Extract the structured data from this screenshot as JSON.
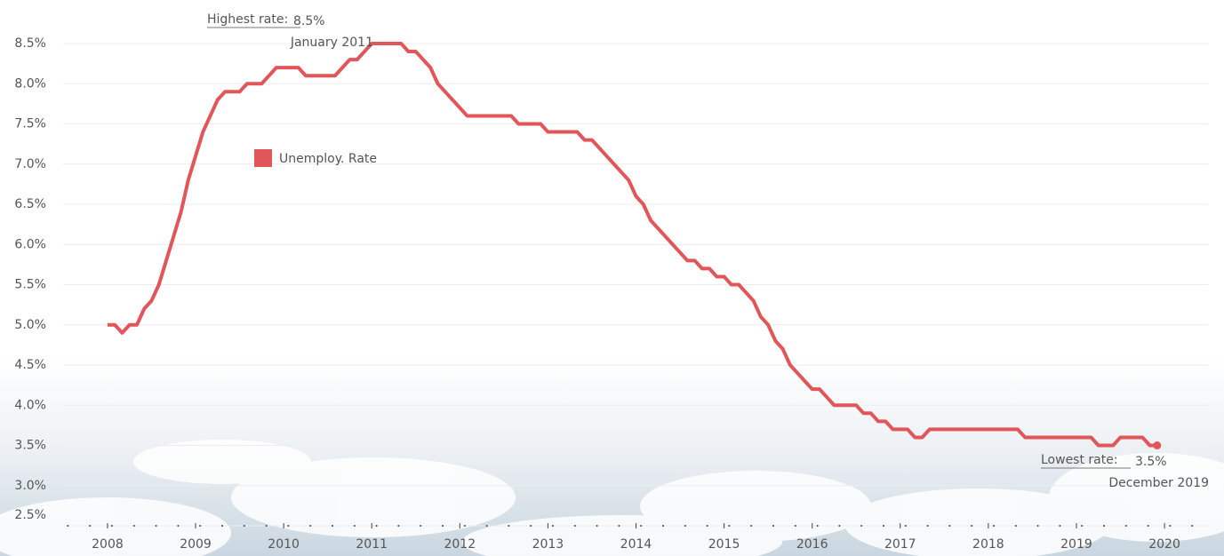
{
  "chart_data": {
    "type": "line",
    "x": [
      "2008-01",
      "2008-02",
      "2008-03",
      "2008-04",
      "2008-05",
      "2008-06",
      "2008-07",
      "2008-08",
      "2008-09",
      "2008-10",
      "2008-11",
      "2008-12",
      "2009-01",
      "2009-02",
      "2009-03",
      "2009-04",
      "2009-05",
      "2009-06",
      "2009-07",
      "2009-08",
      "2009-09",
      "2009-10",
      "2009-11",
      "2009-12",
      "2010-01",
      "2010-02",
      "2010-03",
      "2010-04",
      "2010-05",
      "2010-06",
      "2010-07",
      "2010-08",
      "2010-09",
      "2010-10",
      "2010-11",
      "2010-12",
      "2011-01",
      "2011-02",
      "2011-03",
      "2011-04",
      "2011-05",
      "2011-06",
      "2011-07",
      "2011-08",
      "2011-09",
      "2011-10",
      "2011-11",
      "2011-12",
      "2012-01",
      "2012-02",
      "2012-03",
      "2012-04",
      "2012-05",
      "2012-06",
      "2012-07",
      "2012-08",
      "2012-09",
      "2012-10",
      "2012-11",
      "2012-12",
      "2013-01",
      "2013-02",
      "2013-03",
      "2013-04",
      "2013-05",
      "2013-06",
      "2013-07",
      "2013-08",
      "2013-09",
      "2013-10",
      "2013-11",
      "2013-12",
      "2014-01",
      "2014-02",
      "2014-03",
      "2014-04",
      "2014-05",
      "2014-06",
      "2014-07",
      "2014-08",
      "2014-09",
      "2014-10",
      "2014-11",
      "2014-12",
      "2015-01",
      "2015-02",
      "2015-03",
      "2015-04",
      "2015-05",
      "2015-06",
      "2015-07",
      "2015-08",
      "2015-09",
      "2015-10",
      "2015-11",
      "2015-12",
      "2016-01",
      "2016-02",
      "2016-03",
      "2016-04",
      "2016-05",
      "2016-06",
      "2016-07",
      "2016-08",
      "2016-09",
      "2016-10",
      "2016-11",
      "2016-12",
      "2017-01",
      "2017-02",
      "2017-03",
      "2017-04",
      "2017-05",
      "2017-06",
      "2017-07",
      "2017-08",
      "2017-09",
      "2017-10",
      "2017-11",
      "2017-12",
      "2018-01",
      "2018-02",
      "2018-03",
      "2018-04",
      "2018-05",
      "2018-06",
      "2018-07",
      "2018-08",
      "2018-09",
      "2018-10",
      "2018-11",
      "2018-12",
      "2019-01",
      "2019-02",
      "2019-03",
      "2019-04",
      "2019-05",
      "2019-06",
      "2019-07",
      "2019-08",
      "2019-09",
      "2019-10",
      "2019-11",
      "2019-12"
    ],
    "series": [
      {
        "name": "Unemploy. Rate",
        "color": "#e05659",
        "values": [
          5.0,
          5.0,
          4.9,
          5.0,
          5.0,
          5.2,
          5.3,
          5.5,
          5.8,
          6.1,
          6.4,
          6.8,
          7.1,
          7.4,
          7.6,
          7.8,
          7.9,
          7.9,
          7.9,
          8.0,
          8.0,
          8.0,
          8.1,
          8.2,
          8.2,
          8.2,
          8.2,
          8.1,
          8.1,
          8.1,
          8.1,
          8.1,
          8.2,
          8.3,
          8.3,
          8.4,
          8.5,
          8.5,
          8.5,
          8.5,
          8.5,
          8.4,
          8.4,
          8.3,
          8.2,
          8.0,
          7.9,
          7.8,
          7.7,
          7.6,
          7.6,
          7.6,
          7.6,
          7.6,
          7.6,
          7.6,
          7.5,
          7.5,
          7.5,
          7.5,
          7.4,
          7.4,
          7.4,
          7.4,
          7.4,
          7.3,
          7.3,
          7.2,
          7.1,
          7.0,
          6.9,
          6.8,
          6.6,
          6.5,
          6.3,
          6.2,
          6.1,
          6.0,
          5.9,
          5.8,
          5.8,
          5.7,
          5.7,
          5.6,
          5.6,
          5.5,
          5.5,
          5.4,
          5.3,
          5.1,
          5.0,
          4.8,
          4.7,
          4.5,
          4.4,
          4.3,
          4.2,
          4.2,
          4.1,
          4.0,
          4.0,
          4.0,
          4.0,
          3.9,
          3.9,
          3.8,
          3.8,
          3.7,
          3.7,
          3.7,
          3.6,
          3.6,
          3.7,
          3.7,
          3.7,
          3.7,
          3.7,
          3.7,
          3.7,
          3.7,
          3.7,
          3.7,
          3.7,
          3.7,
          3.7,
          3.6,
          3.6,
          3.6,
          3.6,
          3.6,
          3.6,
          3.6,
          3.6,
          3.6,
          3.6,
          3.5,
          3.5,
          3.5,
          3.6,
          3.6,
          3.6,
          3.6,
          3.5,
          3.5
        ]
      }
    ],
    "xlim": [
      2007.5,
      2020.5
    ],
    "xticks": [
      2008,
      2009,
      2010,
      2011,
      2012,
      2013,
      2014,
      2015,
      2016,
      2017,
      2018,
      2019,
      2020
    ],
    "ylim": [
      2.5,
      8.8
    ],
    "yticks": [
      {
        "value": 2.5,
        "label": "2.5%"
      },
      {
        "value": 3.0,
        "label": "3.0%"
      },
      {
        "value": 3.5,
        "label": "3.5%"
      },
      {
        "value": 4.0,
        "label": "4.0%"
      },
      {
        "value": 4.5,
        "label": "4.5%"
      },
      {
        "value": 5.0,
        "label": "5.0%"
      },
      {
        "value": 5.5,
        "label": "5.5%"
      },
      {
        "value": 6.0,
        "label": "6.0%"
      },
      {
        "value": 6.5,
        "label": "6.5%"
      },
      {
        "value": 7.0,
        "label": "7.0%"
      },
      {
        "value": 7.5,
        "label": "7.5%"
      },
      {
        "value": 8.0,
        "label": "8.0%"
      },
      {
        "value": 8.5,
        "label": "8.5%"
      }
    ],
    "grid": true,
    "annotations": [
      {
        "label": "Highest rate:",
        "value_text": "8.5%",
        "date": "January 2011"
      },
      {
        "label": "Lowest rate:",
        "value_text": "3.5%",
        "date": "December 2019"
      }
    ]
  }
}
